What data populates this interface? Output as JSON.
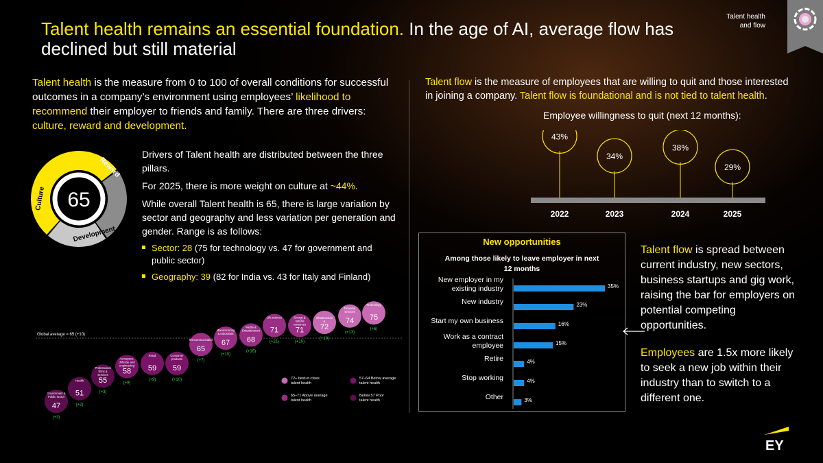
{
  "title": {
    "highlight": "Talent health remains an essential foundation.",
    "rest": " In the age of AI, average flow has declined but still material"
  },
  "corner_tag": {
    "line1": "Talent health",
    "line2": "and flow"
  },
  "left_intro": {
    "term": "Talent health",
    "part1": " is the measure from 0 to 100 of overall conditions for successful outcomes in a company’s environment using employees’ ",
    "highlight1": "likelihood to recommend",
    "part2": " their employer to friends and family. There are three drivers: ",
    "highlight2": "culture, reward and development",
    "part3": "."
  },
  "right_intro": {
    "term": "Talent flow",
    "part1": " is the measure of employees that are willing to quit and those interested in joining a company. ",
    "highlight": "Talent flow is foundational and is not tied to talent health",
    "part2": "."
  },
  "donut": {
    "center_value": "65",
    "segments": [
      {
        "label": "Culture",
        "share": 0.44,
        "color": "#ffe600"
      },
      {
        "label": "Reward",
        "share": 0.28,
        "color": "#8c8c8c"
      },
      {
        "label": "Development",
        "share": 0.28,
        "color": "#c8c8c8"
      }
    ]
  },
  "drivers": {
    "p1": "Drivers of Talent health are distributed between the three pillars.",
    "p2_pre": "For 2025, there is more weight on culture at ",
    "p2_hl": "~44%",
    "p2_post": ".",
    "p3": "While overall Talent health is 65, there is large variation by sector and geography and less variation per generation and gender. Range is as follows:",
    "bullets": [
      {
        "hl": "Sector: 28",
        "text": " (75 for technology vs. 47 for government and public sector)"
      },
      {
        "hl": "Geography: 39",
        "text": " (82 for India vs. 43 for Italy and Finland)"
      }
    ]
  },
  "quit_timeline": {
    "label": "Employee willingness to quit (next 12 months):",
    "points": [
      {
        "year": "2022",
        "value": "43%"
      },
      {
        "year": "2023",
        "value": "34%"
      },
      {
        "year": "2024",
        "value": "38%"
      },
      {
        "year": "2025",
        "value": "29%"
      }
    ]
  },
  "new_opportunities": {
    "heading": "New opportunities",
    "subheading": "Among those likely to leave employer in next 12 months",
    "accent": "#1e8fe1",
    "rows": [
      {
        "label": "New employer in my existing industry",
        "value": 35,
        "text": "35%"
      },
      {
        "label": "New industry",
        "value": 23,
        "text": "23%"
      },
      {
        "label": "Start my own business",
        "value": 16,
        "text": "16%"
      },
      {
        "label": "Work as a contract employee",
        "value": 15,
        "text": "15%"
      },
      {
        "label": "Retire",
        "value": 4,
        "text": "4%"
      },
      {
        "label": "Stop working",
        "value": 4,
        "text": "4%"
      },
      {
        "label": "Other",
        "value": 3,
        "text": "3%"
      }
    ]
  },
  "right_bottom": {
    "p1_term": "Talent flow",
    "p1_text": " is spread between current industry, new sectors, business startups and gig work, raising the bar for employers on potential competing opportunities.",
    "p2_term": "Employees",
    "p2_text": " are 1.5x more likely to seek a new job within their industry than to switch to a different one."
  },
  "sectors": {
    "global_average": "Global average = 65 (+10)",
    "items": [
      {
        "name": "Government & Public sector",
        "value": "47",
        "change": "(+3)",
        "tier": "poor"
      },
      {
        "name": "Health",
        "value": "51",
        "change": "(+2)",
        "tier": "poor"
      },
      {
        "name": "Professional firms & services",
        "value": "55",
        "change": "(+3)",
        "tier": "poor"
      },
      {
        "name": "Aerospace, defense and engineering",
        "value": "58",
        "change": "(+9)",
        "tier": "below"
      },
      {
        "name": "Retail",
        "value": "59",
        "change": "(+9)",
        "tier": "below"
      },
      {
        "name": "Consumer products",
        "value": "59",
        "change": "(+10)",
        "tier": "below"
      },
      {
        "name": "Telecommunication",
        "value": "65",
        "change": "(+7)",
        "tier": "above"
      },
      {
        "name": "Manufacturing & Industrials",
        "value": "67",
        "change": "(+10)",
        "tier": "above"
      },
      {
        "name": "Media & Entertainment",
        "value": "68",
        "change": "(+16)",
        "tier": "above"
      },
      {
        "name": "Life science",
        "value": "71",
        "change": "(+21)",
        "tier": "above"
      },
      {
        "name": "Energy & natural resources",
        "value": "71",
        "change": "(+15)",
        "tier": "above"
      },
      {
        "name": "Infrastructure & construction",
        "value": "72",
        "change": "(+10)",
        "tier": "best"
      },
      {
        "name": "Financial services",
        "value": "74",
        "change": "(+13)",
        "tier": "best"
      },
      {
        "name": "Technology",
        "value": "75",
        "change": "(+6)",
        "tier": "best"
      }
    ],
    "legend": [
      {
        "tier": "best",
        "text": "72+ best-in-class talent health"
      },
      {
        "tier": "below",
        "text": "57–64 Below average talent health"
      },
      {
        "tier": "above",
        "text": "65–71 Above average talent health"
      },
      {
        "tier": "poor",
        "text": "Below 57 Poor talent health"
      }
    ],
    "tier_colors": {
      "best": "#c96bb4",
      "above": "#9a2d84",
      "below": "#7a1468",
      "poor": "#5c0d4f"
    },
    "change_color": "#3fcf5a"
  },
  "brand": {
    "logo_text": "EY",
    "accent": "#ffe600"
  }
}
